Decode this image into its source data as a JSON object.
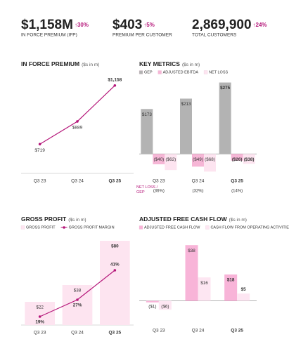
{
  "kpis": [
    {
      "value": "$1,158M",
      "change": "↑30%",
      "label": "IN FORCE PREMIUM (IFP)"
    },
    {
      "value": "$403",
      "change": "↑5%",
      "label": "PREMIUM PER CUSTOMER"
    },
    {
      "value": "2,869,900",
      "change": "↑24%",
      "label": "TOTAL CUSTOMERS"
    }
  ],
  "chart_data": [
    {
      "type": "line",
      "title": "IN FORCE PREMIUM",
      "unit": "($s in m)",
      "categories": [
        "Q3 23",
        "Q3 24",
        "Q3 25"
      ],
      "values": [
        719,
        889,
        1158
      ],
      "value_labels": [
        "$719",
        "$889",
        "$1,158"
      ],
      "color": "#b5177a",
      "ylim": [
        500,
        1220
      ]
    },
    {
      "type": "bar",
      "title": "KEY METRICS",
      "unit": "($s in m)",
      "categories": [
        "Q3 23",
        "Q3 24",
        "Q3 25"
      ],
      "series": [
        {
          "name": "GEP",
          "color": "#b3b3b3",
          "values": [
            173,
            213,
            275
          ],
          "value_labels": [
            "$173",
            "$213",
            "$275"
          ]
        },
        {
          "name": "ADJUSTED EBITDA",
          "color": "#f6b6d6",
          "values": [
            -40,
            -49,
            -26
          ],
          "value_labels": [
            "($40)",
            "($49)",
            "($26)"
          ]
        },
        {
          "name": "NET LOSS",
          "color": "#fde4f0",
          "values": [
            -62,
            -68,
            -38
          ],
          "value_labels": [
            "($62)",
            "($68)",
            "($38)"
          ]
        }
      ],
      "ratio": {
        "label": "NET LOSS / GEP",
        "values": [
          -36,
          -32,
          -14
        ],
        "value_labels": [
          "(36%)",
          "(32%)",
          "(14%)"
        ]
      },
      "ylim": [
        -75,
        290
      ]
    },
    {
      "type": "combo",
      "title": "GROSS PROFIT",
      "unit": "($s in m)",
      "categories": [
        "Q3 23",
        "Q3 24",
        "Q3 25"
      ],
      "series": [
        {
          "name": "GROSS PROFIT",
          "color": "#fde4f0",
          "values": [
            22,
            38,
            80
          ],
          "value_labels": [
            "$22",
            "$38",
            "$80"
          ]
        },
        {
          "name": "GROSS PROFIT MARGIN",
          "color": "#b5177a",
          "values": [
            19,
            27,
            41
          ],
          "value_labels": [
            "19%",
            "27%",
            "41%"
          ],
          "axis": "y2"
        }
      ],
      "ylim": [
        0,
        82
      ],
      "y2lim": [
        15,
        56
      ]
    },
    {
      "type": "bar",
      "title": "ADJUSTED FREE CASH FLOW",
      "unit": "($s in m)",
      "categories": [
        "Q3 23",
        "Q3 24",
        "Q3 25"
      ],
      "series": [
        {
          "name": "ADJUSTED FREE CASH FLOW",
          "color": "#f8b4d8",
          "values": [
            -1,
            38,
            18
          ],
          "value_labels": [
            "($1)",
            "$38",
            "$18"
          ]
        },
        {
          "name": "CASH FLOW FROM OPERATING ACTIVITIES",
          "color": "#fde6f2",
          "values": [
            -6,
            16,
            5
          ],
          "value_labels": [
            "($6)",
            "$16",
            "$5"
          ]
        }
      ],
      "ylim": [
        -15,
        40
      ]
    }
  ]
}
